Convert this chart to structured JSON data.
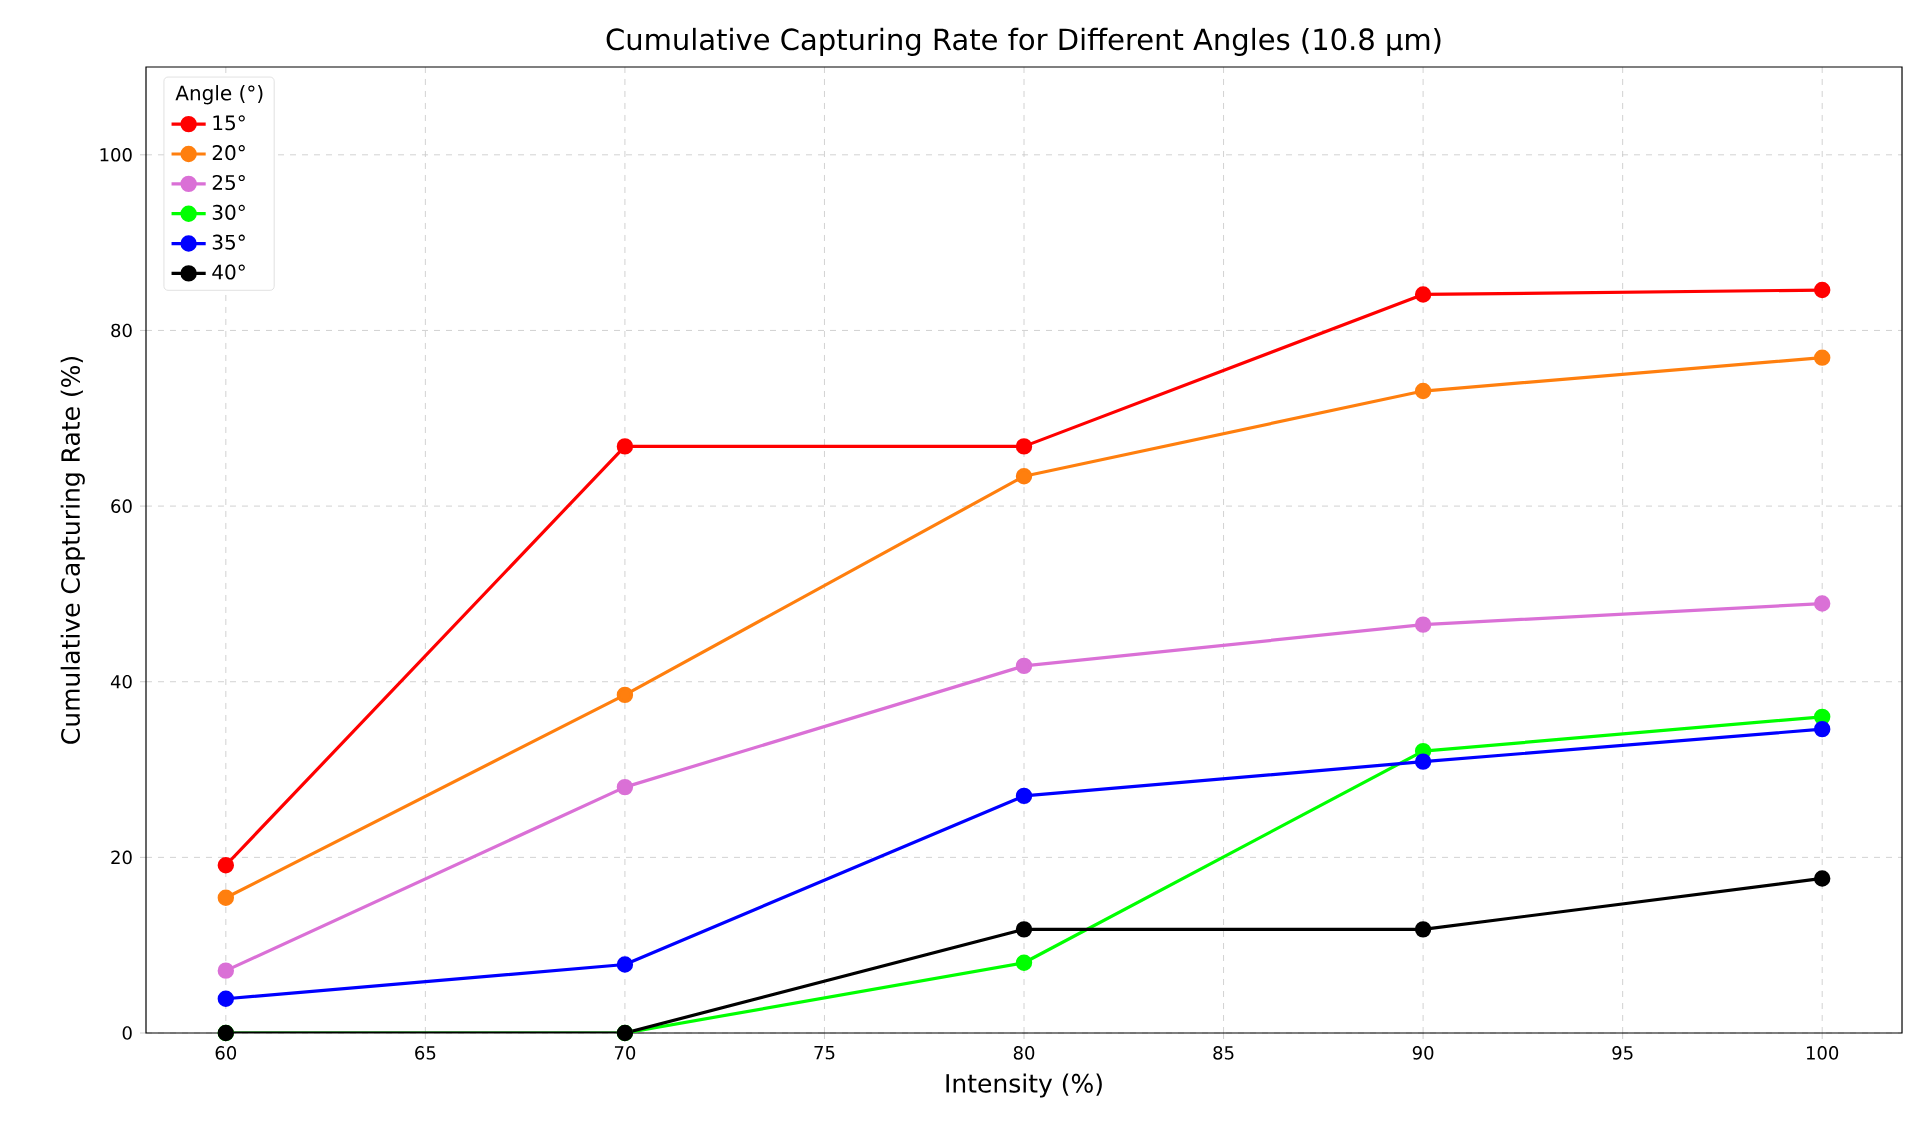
{
  "chart_data": {
    "type": "line",
    "title": "Cumulative Capturing Rate for Different Angles (10.8 μm)",
    "xlabel": "Intensity (%)",
    "ylabel": "Cumulative Capturing Rate (%)",
    "legend_title": "Angle (°)",
    "x": [
      60,
      70,
      80,
      90,
      100
    ],
    "series": [
      {
        "name": "15°",
        "color": "#ff0000",
        "values": [
          19.1,
          66.8,
          66.8,
          84.1,
          84.6
        ]
      },
      {
        "name": "20°",
        "color": "#ff7f0e",
        "values": [
          15.4,
          38.5,
          63.4,
          73.1,
          76.9
        ]
      },
      {
        "name": "25°",
        "color": "#da70d6",
        "values": [
          7.1,
          28.0,
          41.8,
          46.5,
          48.9
        ]
      },
      {
        "name": "30°",
        "color": "#00ff00",
        "values": [
          0,
          0,
          8.0,
          32.1,
          36.0
        ]
      },
      {
        "name": "35°",
        "color": "#0000ff",
        "values": [
          3.9,
          7.8,
          27.0,
          30.9,
          34.6
        ]
      },
      {
        "name": "40°",
        "color": "#000000",
        "values": [
          0,
          0,
          11.8,
          11.8,
          17.6
        ]
      }
    ],
    "xlim": [
      58,
      102
    ],
    "ylim": [
      0,
      110
    ],
    "xticks": [
      60,
      65,
      70,
      75,
      80,
      85,
      90,
      95,
      100
    ],
    "yticks": [
      0,
      20,
      40,
      60,
      80,
      100
    ],
    "grid": true,
    "legend": "top left",
    "marker": "circle",
    "line_style": "solid"
  }
}
